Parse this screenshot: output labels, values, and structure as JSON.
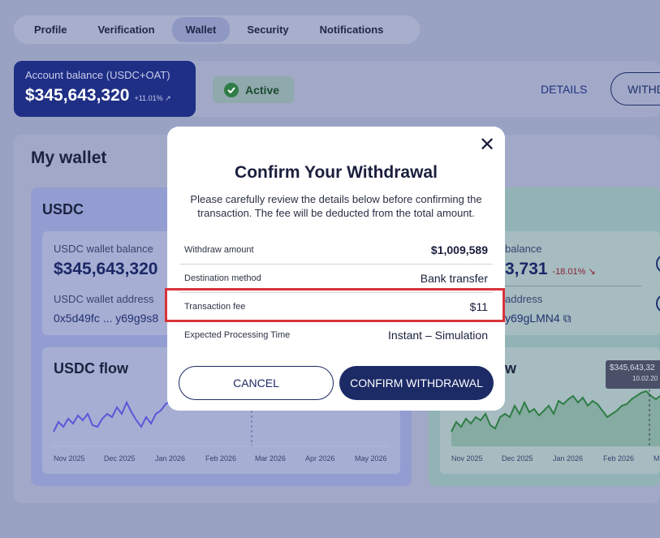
{
  "tabs": [
    "Profile",
    "Verification",
    "Wallet",
    "Security",
    "Notifications"
  ],
  "account": {
    "label": "Account balance (USDC+OAT)",
    "amount": "$345,643,320",
    "change": "+11.01%",
    "status": "Active",
    "details": "DETAILS",
    "withdraw": "WITHDRAW"
  },
  "wallet": {
    "title": "My wallet",
    "usdc": {
      "title": "USDC",
      "balance_label": "USDC wallet balance",
      "balance": "$345,643,320",
      "address_label": "USDC wallet address",
      "address": "0x5d49fc ... y69g9s8",
      "flow_title": "USDC flow",
      "axis": [
        "Nov 2025",
        "Dec 2025",
        "Jan 2026",
        "Feb 2026",
        "Mar 2026",
        "Apr 2026",
        "May 2026"
      ]
    },
    "oat": {
      "balance_label": "balance",
      "balance": "3,731",
      "change": "-18.01%",
      "address_label": "address",
      "address": "y69gLMN4",
      "flow_title": "w",
      "axis": [
        "Nov 2025",
        "Dec 2025",
        "Jan 2026",
        "Feb 2026",
        "M"
      ],
      "tooltip_value": "$345,643,32",
      "tooltip_date": "10.02.20"
    }
  },
  "modal": {
    "title": "Confirm Your Withdrawal",
    "description": "Please carefully review the details below before confirming the transaction. The fee will be deducted from the total amount.",
    "rows": [
      {
        "key": "Withdraw amount",
        "value": "$1,009,589"
      },
      {
        "key": "Destination method",
        "value": "Bank transfer"
      },
      {
        "key": "Transaction fee",
        "value": "$11"
      },
      {
        "key": "Expected Processing Time",
        "value": "Instant – Simulation"
      }
    ],
    "cancel": "CANCEL",
    "confirm": "CONFIRM WITHDRAWAL",
    "close_icon": "close-icon"
  },
  "colors": {
    "accent": "#1c2a66",
    "highlight": "#d9333b",
    "usdc_line": "#5b56d8",
    "oat_line": "#2f7d46"
  }
}
